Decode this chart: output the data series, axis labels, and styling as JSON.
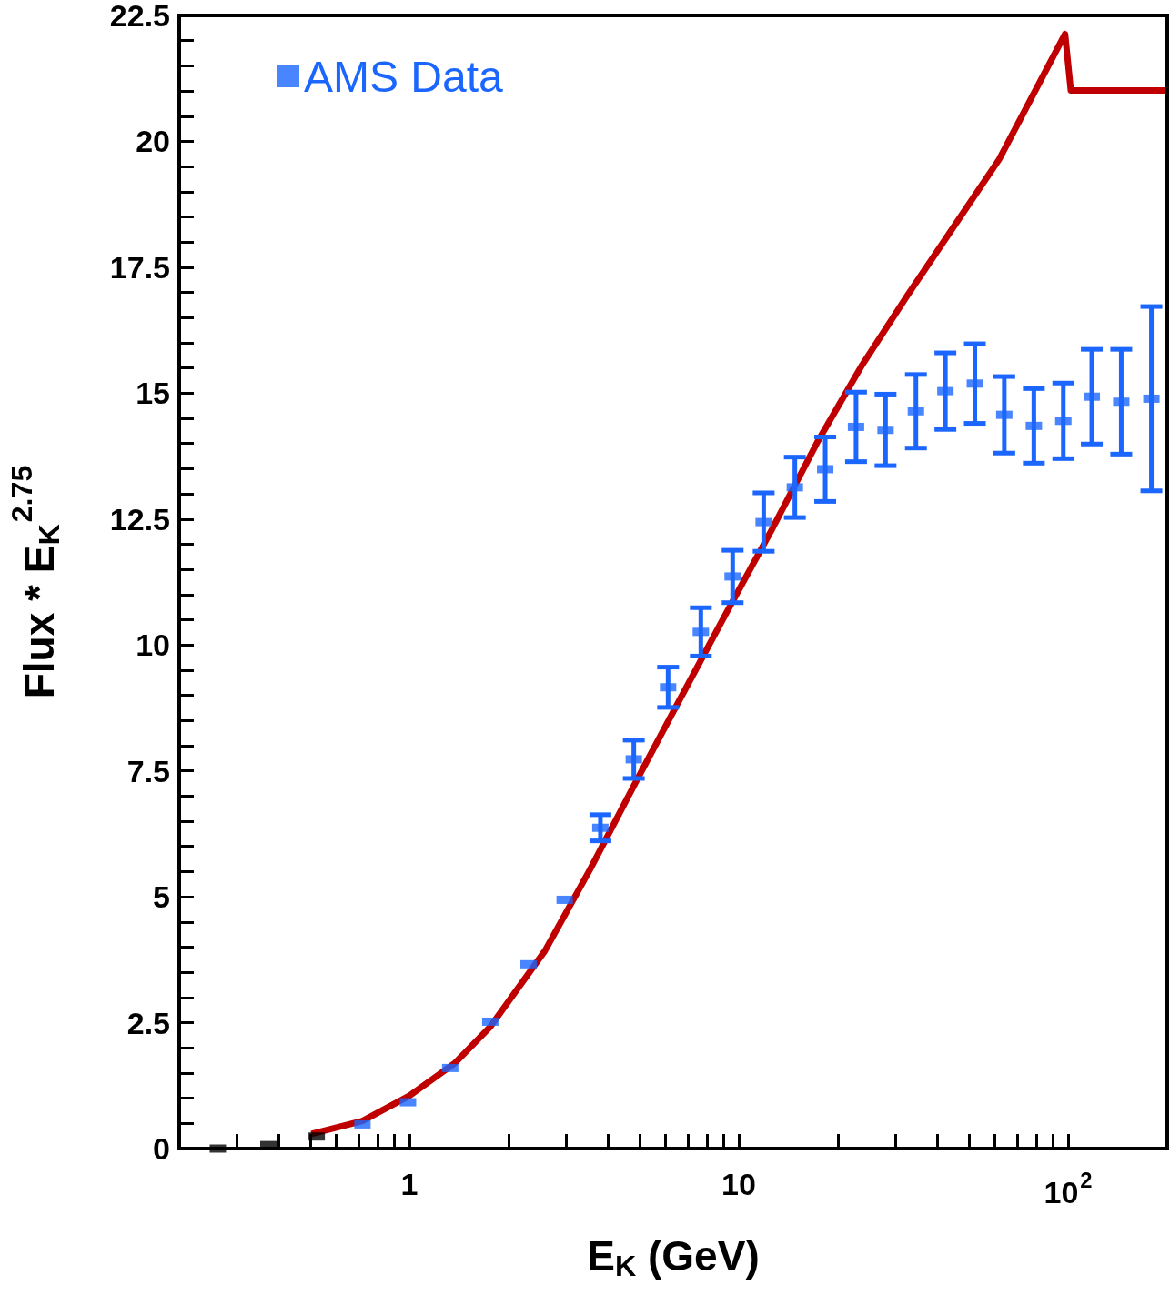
{
  "chart_data": {
    "type": "scatter",
    "xlabel": "E$_{K}$ (GeV)",
    "ylabel": "Flux * E$_{K}$$^{2.75}$",
    "log": "x",
    "xlim": [
      0.2,
      200
    ],
    "xticks": [
      {
        "value": 0.3,
        "label": null
      },
      {
        "value": 0.4,
        "label": null
      },
      {
        "value": 0.5,
        "label": null
      },
      {
        "value": 0.6,
        "label": null
      },
      {
        "value": 0.7,
        "label": null
      },
      {
        "value": 0.8,
        "label": null
      },
      {
        "value": 0.9,
        "label": null
      },
      1,
      {
        "value": 2,
        "label": null
      },
      {
        "value": 3,
        "label": null
      },
      {
        "value": 4,
        "label": null
      },
      {
        "value": 5,
        "label": null
      },
      {
        "value": 6,
        "label": null
      },
      {
        "value": 7,
        "label": null
      },
      {
        "value": 8,
        "label": null
      },
      {
        "value": 9,
        "label": null
      },
      10,
      {
        "value": 20,
        "label": null
      },
      {
        "value": 30,
        "label": null
      },
      {
        "value": 40,
        "label": null
      },
      {
        "value": 50,
        "label": null
      },
      {
        "value": 60,
        "label": null
      },
      {
        "value": 70,
        "label": null
      },
      {
        "value": 80,
        "label": null
      },
      {
        "value": 90,
        "label": null
      },
      {
        "value": 100,
        "label": "10$^{2}$"
      }
    ],
    "ylim": [
      0,
      22.5
    ],
    "yticks": [
      0,
      {
        "value": 0.5,
        "label": null
      },
      {
        "value": 1,
        "label": null
      },
      {
        "value": 1.5,
        "label": null
      },
      {
        "value": 2,
        "label": null
      },
      2.5,
      {
        "value": 3,
        "label": null
      },
      {
        "value": 3.5,
        "label": null
      },
      {
        "value": 4,
        "label": null
      },
      {
        "value": 4.5,
        "label": null
      },
      5,
      {
        "value": 5.5,
        "label": null
      },
      {
        "value": 6,
        "label": null
      },
      {
        "value": 6.5,
        "label": null
      },
      {
        "value": 7,
        "label": null
      },
      7.5,
      {
        "value": 8,
        "label": null
      },
      {
        "value": 8.5,
        "label": null
      },
      {
        "value": 9,
        "label": null
      },
      {
        "value": 9.5,
        "label": null
      },
      10,
      {
        "value": 10.5,
        "label": null
      },
      {
        "value": 11,
        "label": null
      },
      {
        "value": 11.5,
        "label": null
      },
      {
        "value": 12,
        "label": null
      },
      12.5,
      {
        "value": 13,
        "label": null
      },
      {
        "value": 13.5,
        "label": null
      },
      {
        "value": 14,
        "label": null
      },
      {
        "value": 14.5,
        "label": null
      },
      15,
      {
        "value": 15.5,
        "label": null
      },
      {
        "value": 16,
        "label": null
      },
      {
        "value": 16.5,
        "label": null
      },
      {
        "value": 17,
        "label": null
      },
      17.5,
      {
        "value": 18,
        "label": null
      },
      {
        "value": 18.5,
        "label": null
      },
      {
        "value": 19,
        "label": null
      },
      {
        "value": 19.5,
        "label": null
      },
      20,
      {
        "value": 20.5,
        "label": null
      },
      {
        "value": 21,
        "label": null
      },
      {
        "value": 21.5,
        "label": null
      },
      {
        "value": 22,
        "label": null
      },
      22.5
    ],
    "grid": false,
    "legend": "top left",
    "marker": "square",
    "series": [
      {
        "name": "AMS Data",
        "color": "#1a66ff",
        "x": [
          0.72,
          0.99,
          1.33,
          1.76,
          2.3,
          2.96,
          3.8,
          4.8,
          6.1,
          7.67,
          9.58,
          11.9,
          14.8,
          18.3,
          22.7,
          27.9,
          34.5,
          42.4,
          52.1,
          64.0,
          78.7,
          96.7,
          118,
          145,
          179
        ],
        "values": [
          0.48,
          0.92,
          1.6,
          2.52,
          3.66,
          4.94,
          6.37,
          7.73,
          9.16,
          10.26,
          11.36,
          12.44,
          13.13,
          13.49,
          14.33,
          14.27,
          14.64,
          15.04,
          15.19,
          14.57,
          14.35,
          14.45,
          14.93,
          14.83,
          14.89
        ],
        "errors": [
          null,
          null,
          null,
          null,
          null,
          null,
          0.26,
          0.38,
          0.4,
          0.48,
          0.52,
          0.58,
          0.6,
          0.64,
          0.69,
          0.71,
          0.73,
          0.76,
          0.79,
          0.76,
          0.74,
          0.75,
          0.94,
          1.04,
          1.83
        ]
      },
      {
        "color": "#000000",
        "x": [
          0.262,
          0.373,
          0.523
        ],
        "values": [
          0.0,
          0.07,
          0.24
        ]
      },
      {
        "color": "#c00000",
        "type": "line",
        "marker": "none",
        "x": [
          0.504,
          0.72,
          1,
          1.37,
          1.76,
          2.58,
          3.54,
          4.86,
          6.7,
          9.17,
          12.6,
          17.3,
          23.7,
          32.5,
          61.7,
          97.9,
          101.9,
          197
        ],
        "values": [
          0.29,
          0.55,
          1.05,
          1.69,
          2.42,
          3.93,
          5.55,
          7.27,
          8.98,
          10.64,
          12.29,
          14.02,
          15.56,
          16.94,
          19.64,
          22.13,
          21.01,
          21.01
        ]
      }
    ]
  }
}
